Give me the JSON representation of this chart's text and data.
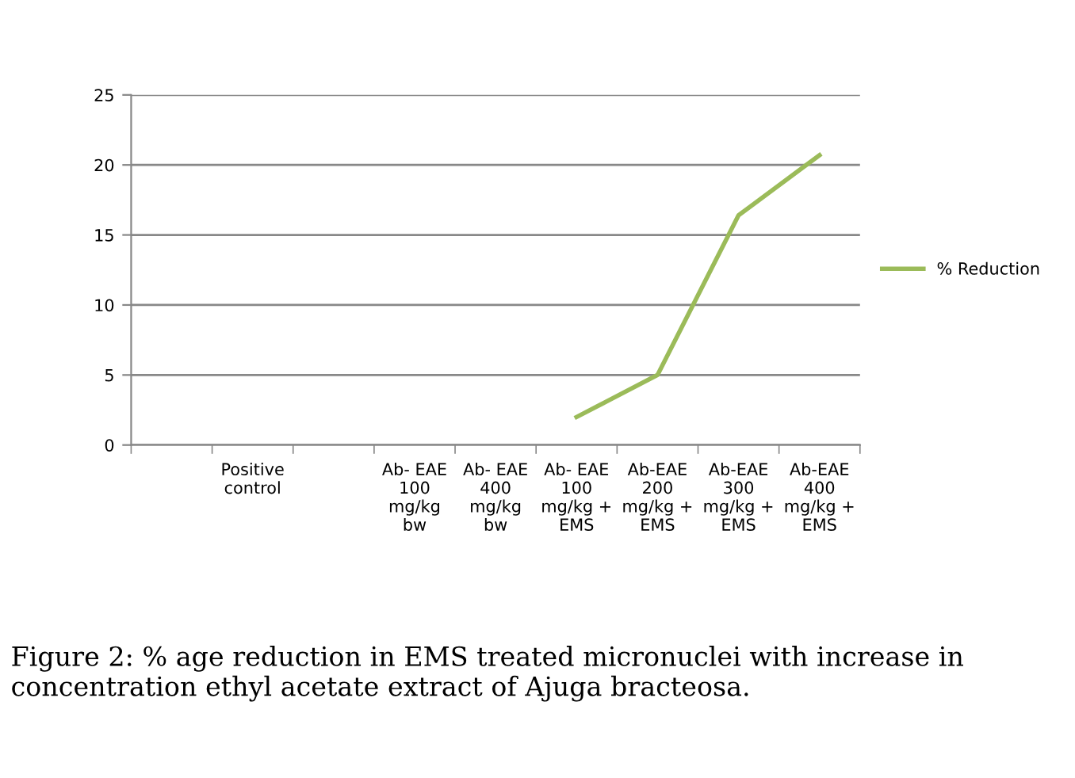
{
  "chart_data": {
    "type": "line",
    "categories": [
      null,
      "Positive\ncontrol",
      null,
      "Ab- EAE\n100\nmg/kg\nbw",
      "Ab- EAE\n400\nmg/kg\nbw",
      "Ab- EAE\n100\nmg/kg +\nEMS",
      "Ab-EAE\n200\nmg/kg +\nEMS",
      "Ab-EAE\n300\nmg/kg +\nEMS",
      "Ab-EAE\n400\nmg/kg +\nEMS"
    ],
    "series": [
      {
        "name": "% Reduction",
        "color": "#9bbb59",
        "values": [
          null,
          null,
          null,
          null,
          null,
          2,
          5,
          16.4,
          20.7
        ]
      }
    ],
    "ylim": [
      0,
      25
    ],
    "yticks": [
      0,
      5,
      10,
      15,
      20,
      25
    ],
    "grid": "y",
    "legend": "right",
    "marker": "none",
    "line_style": "solid",
    "annotations": [
      "Figure 2: % age reduction in EMS treated micronuclei with increase in concentration ethyl acetate extract of Ajuga bracteosa."
    ]
  }
}
